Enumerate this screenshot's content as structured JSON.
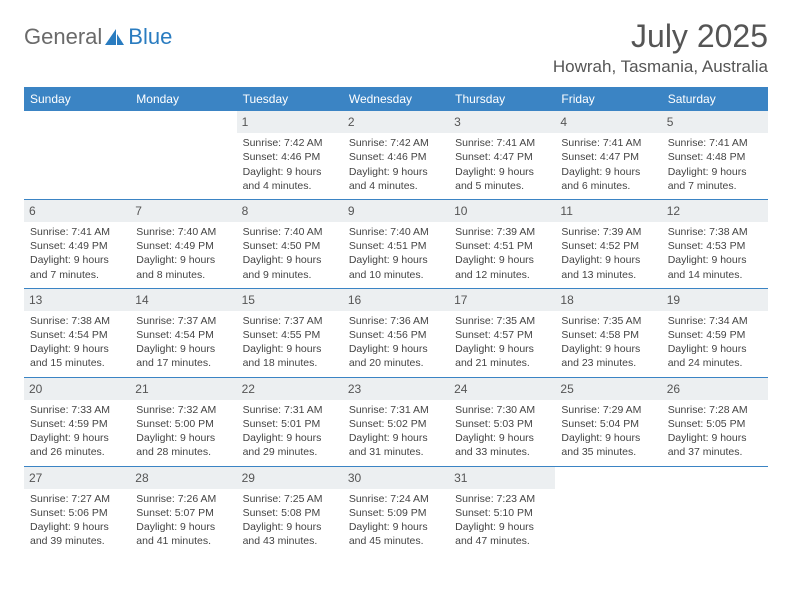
{
  "brand": {
    "general": "General",
    "blue": "Blue"
  },
  "title": "July 2025",
  "location": "Howrah, Tasmania, Australia",
  "colors": {
    "header_bg": "#3b84c4",
    "header_text": "#ffffff",
    "daynum_bg": "#eceff1",
    "text": "#444444",
    "border": "#3b84c4",
    "title_color": "#555555",
    "logo_gray": "#6a6a6a",
    "logo_blue": "#2a7cc0"
  },
  "day_headers": [
    "Sunday",
    "Monday",
    "Tuesday",
    "Wednesday",
    "Thursday",
    "Friday",
    "Saturday"
  ],
  "weeks": [
    [
      null,
      null,
      {
        "n": "1",
        "sr": "7:42 AM",
        "ss": "4:46 PM",
        "dl": "9 hours and 4 minutes."
      },
      {
        "n": "2",
        "sr": "7:42 AM",
        "ss": "4:46 PM",
        "dl": "9 hours and 4 minutes."
      },
      {
        "n": "3",
        "sr": "7:41 AM",
        "ss": "4:47 PM",
        "dl": "9 hours and 5 minutes."
      },
      {
        "n": "4",
        "sr": "7:41 AM",
        "ss": "4:47 PM",
        "dl": "9 hours and 6 minutes."
      },
      {
        "n": "5",
        "sr": "7:41 AM",
        "ss": "4:48 PM",
        "dl": "9 hours and 7 minutes."
      }
    ],
    [
      {
        "n": "6",
        "sr": "7:41 AM",
        "ss": "4:49 PM",
        "dl": "9 hours and 7 minutes."
      },
      {
        "n": "7",
        "sr": "7:40 AM",
        "ss": "4:49 PM",
        "dl": "9 hours and 8 minutes."
      },
      {
        "n": "8",
        "sr": "7:40 AM",
        "ss": "4:50 PM",
        "dl": "9 hours and 9 minutes."
      },
      {
        "n": "9",
        "sr": "7:40 AM",
        "ss": "4:51 PM",
        "dl": "9 hours and 10 minutes."
      },
      {
        "n": "10",
        "sr": "7:39 AM",
        "ss": "4:51 PM",
        "dl": "9 hours and 12 minutes."
      },
      {
        "n": "11",
        "sr": "7:39 AM",
        "ss": "4:52 PM",
        "dl": "9 hours and 13 minutes."
      },
      {
        "n": "12",
        "sr": "7:38 AM",
        "ss": "4:53 PM",
        "dl": "9 hours and 14 minutes."
      }
    ],
    [
      {
        "n": "13",
        "sr": "7:38 AM",
        "ss": "4:54 PM",
        "dl": "9 hours and 15 minutes."
      },
      {
        "n": "14",
        "sr": "7:37 AM",
        "ss": "4:54 PM",
        "dl": "9 hours and 17 minutes."
      },
      {
        "n": "15",
        "sr": "7:37 AM",
        "ss": "4:55 PM",
        "dl": "9 hours and 18 minutes."
      },
      {
        "n": "16",
        "sr": "7:36 AM",
        "ss": "4:56 PM",
        "dl": "9 hours and 20 minutes."
      },
      {
        "n": "17",
        "sr": "7:35 AM",
        "ss": "4:57 PM",
        "dl": "9 hours and 21 minutes."
      },
      {
        "n": "18",
        "sr": "7:35 AM",
        "ss": "4:58 PM",
        "dl": "9 hours and 23 minutes."
      },
      {
        "n": "19",
        "sr": "7:34 AM",
        "ss": "4:59 PM",
        "dl": "9 hours and 24 minutes."
      }
    ],
    [
      {
        "n": "20",
        "sr": "7:33 AM",
        "ss": "4:59 PM",
        "dl": "9 hours and 26 minutes."
      },
      {
        "n": "21",
        "sr": "7:32 AM",
        "ss": "5:00 PM",
        "dl": "9 hours and 28 minutes."
      },
      {
        "n": "22",
        "sr": "7:31 AM",
        "ss": "5:01 PM",
        "dl": "9 hours and 29 minutes."
      },
      {
        "n": "23",
        "sr": "7:31 AM",
        "ss": "5:02 PM",
        "dl": "9 hours and 31 minutes."
      },
      {
        "n": "24",
        "sr": "7:30 AM",
        "ss": "5:03 PM",
        "dl": "9 hours and 33 minutes."
      },
      {
        "n": "25",
        "sr": "7:29 AM",
        "ss": "5:04 PM",
        "dl": "9 hours and 35 minutes."
      },
      {
        "n": "26",
        "sr": "7:28 AM",
        "ss": "5:05 PM",
        "dl": "9 hours and 37 minutes."
      }
    ],
    [
      {
        "n": "27",
        "sr": "7:27 AM",
        "ss": "5:06 PM",
        "dl": "9 hours and 39 minutes."
      },
      {
        "n": "28",
        "sr": "7:26 AM",
        "ss": "5:07 PM",
        "dl": "9 hours and 41 minutes."
      },
      {
        "n": "29",
        "sr": "7:25 AM",
        "ss": "5:08 PM",
        "dl": "9 hours and 43 minutes."
      },
      {
        "n": "30",
        "sr": "7:24 AM",
        "ss": "5:09 PM",
        "dl": "9 hours and 45 minutes."
      },
      {
        "n": "31",
        "sr": "7:23 AM",
        "ss": "5:10 PM",
        "dl": "9 hours and 47 minutes."
      },
      null,
      null
    ]
  ],
  "labels": {
    "sunrise": "Sunrise:",
    "sunset": "Sunset:",
    "daylight": "Daylight:"
  }
}
